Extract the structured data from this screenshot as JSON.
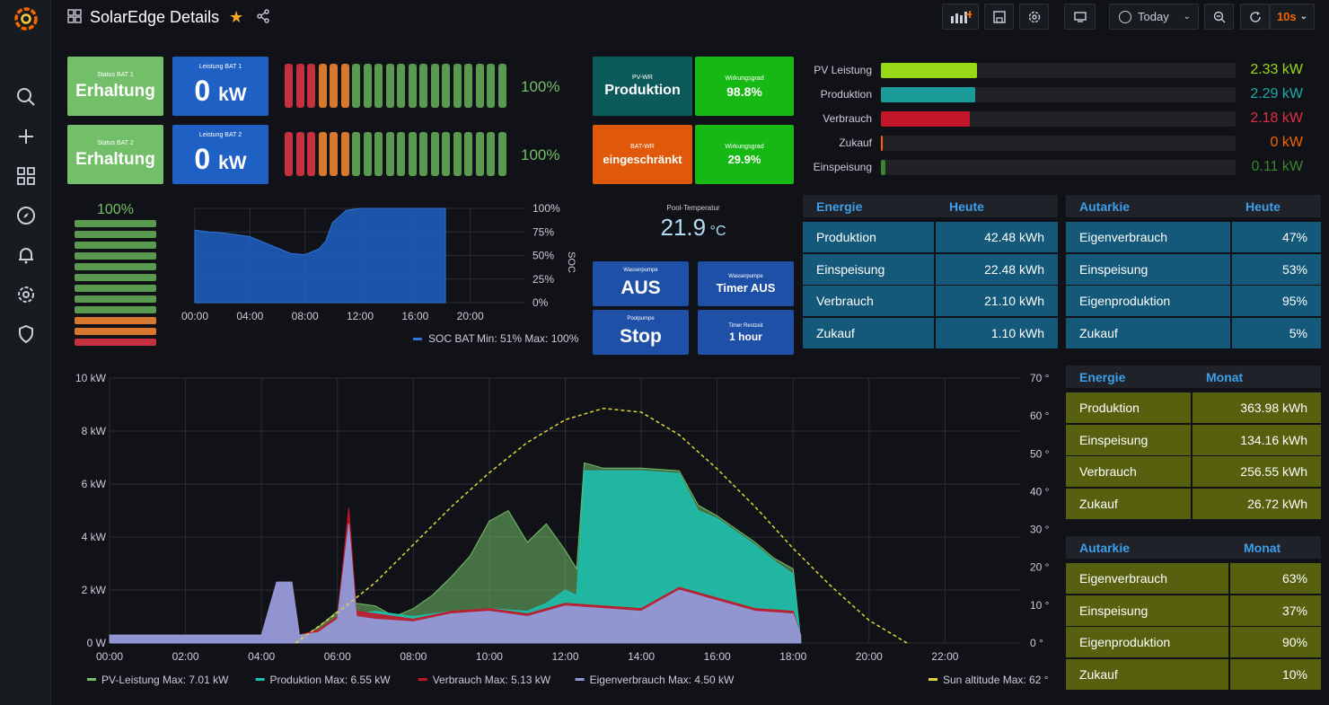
{
  "header": {
    "title": "SolarEdge Details",
    "time_range": "Today",
    "refresh": "10s"
  },
  "bat1": {
    "status_title": "Status BAT 1",
    "status": "Erhaltung",
    "power_title": "Leistung BAT 1",
    "power_value": "0",
    "power_unit": "kW",
    "soc": "100%"
  },
  "bat2": {
    "status_title": "Status BAT 2",
    "status": "Erhaltung",
    "power_title": "Leistung BAT 2",
    "power_value": "0",
    "power_unit": "kW",
    "soc": "100%"
  },
  "soc_level": "100%",
  "pvwr": {
    "title": "PV-WR",
    "status": "Produktion",
    "eff_title": "Wirkungsgrad",
    "eff": "98.8%"
  },
  "batwr": {
    "title": "BAT-WR",
    "status": "eingeschränkt",
    "eff_title": "Wirkungsgrad",
    "eff": "29.9%"
  },
  "pool": {
    "temp_title": "Pool-Temperatur",
    "temp": "21.9",
    "temp_unit": "°C"
  },
  "pumps": [
    {
      "title": "Wasserpumpe",
      "value": "AUS"
    },
    {
      "title": "Wasserpumpe",
      "value": "Timer AUS"
    },
    {
      "title": "Poolpumpe",
      "value": "Stop"
    },
    {
      "title": "Timer Restzeit",
      "value": "1 hour"
    }
  ],
  "bars": [
    {
      "label": "PV Leistung",
      "value": "2.33 kW",
      "fraction": 0.27,
      "color": "#96d916"
    },
    {
      "label": "Produktion",
      "value": "2.29 kW",
      "fraction": 0.265,
      "color": "#1b9a9a"
    },
    {
      "label": "Verbrauch",
      "value": "2.18 kW",
      "fraction": 0.25,
      "color": "#c4162a"
    },
    {
      "label": "Zukauf",
      "value": "0 kW",
      "fraction": 0.004,
      "color": "#fa6400"
    },
    {
      "label": "Einspeisung",
      "value": "0.11 kW",
      "fraction": 0.013,
      "color": "#37872d"
    }
  ],
  "soc_chart": {
    "type": "area",
    "x_ticks": [
      "00:00",
      "04:00",
      "08:00",
      "12:00",
      "16:00",
      "20:00"
    ],
    "y_ticks": [
      "100%",
      "75%",
      "50%",
      "25%",
      "0%"
    ],
    "ylabel": "SOC",
    "legend": "SOC BAT",
    "legend_stats": "Min: 51%  Max: 100%",
    "series": [
      {
        "name": "SOC BAT",
        "x": [
          0,
          1,
          2,
          3,
          4,
          5,
          6,
          7,
          8,
          9,
          9.5,
          10,
          11,
          12,
          13,
          14,
          15,
          16,
          17,
          18.2
        ],
        "values": [
          77,
          75,
          74,
          72,
          70,
          64,
          58,
          52,
          51,
          57,
          65,
          85,
          98,
          100,
          100,
          100,
          100,
          100,
          100,
          100
        ]
      }
    ]
  },
  "energie_heute": {
    "col1": "Energie",
    "col2": "Heute",
    "rows": [
      {
        "label": "Produktion",
        "value": "42.48 kWh"
      },
      {
        "label": "Einspeisung",
        "value": "22.48 kWh"
      },
      {
        "label": "Verbrauch",
        "value": "21.10 kWh"
      },
      {
        "label": "Zukauf",
        "value": "1.10 kWh"
      }
    ]
  },
  "autarkie_heute": {
    "col1": "Autarkie",
    "col2": "Heute",
    "rows": [
      {
        "label": "Eigenverbrauch",
        "value": "47%"
      },
      {
        "label": "Einspeisung",
        "value": "53%"
      },
      {
        "label": "Eigenproduktion",
        "value": "95%"
      },
      {
        "label": "Zukauf",
        "value": "5%"
      }
    ]
  },
  "energie_monat": {
    "col1": "Energie",
    "col2": "Monat",
    "rows": [
      {
        "label": "Produktion",
        "value": "363.98 kWh"
      },
      {
        "label": "Einspeisung",
        "value": "134.16 kWh"
      },
      {
        "label": "Verbrauch",
        "value": "256.55 kWh"
      },
      {
        "label": "Zukauf",
        "value": "26.72 kWh"
      }
    ]
  },
  "autarkie_monat": {
    "col1": "Autarkie",
    "col2": "Monat",
    "rows": [
      {
        "label": "Eigenverbrauch",
        "value": "63%"
      },
      {
        "label": "Einspeisung",
        "value": "37%"
      },
      {
        "label": "Eigenproduktion",
        "value": "90%"
      },
      {
        "label": "Zukauf",
        "value": "10%"
      }
    ]
  },
  "chart_data": {
    "type": "area",
    "x_ticks": [
      "00:00",
      "02:00",
      "04:00",
      "06:00",
      "08:00",
      "10:00",
      "12:00",
      "14:00",
      "16:00",
      "18:00",
      "20:00",
      "22:00"
    ],
    "y_ticks": [
      "10 kW",
      "8 kW",
      "6 kW",
      "4 kW",
      "2 kW",
      "0 W"
    ],
    "y2_ticks": [
      "70 °",
      "60 °",
      "50 °",
      "40 °",
      "30 °",
      "20 °",
      "10 °",
      "0 °"
    ],
    "ylim": [
      0,
      10
    ],
    "y2lim": [
      0,
      70
    ],
    "series": [
      {
        "name": "PV-Leistung",
        "legend": "PV-Leistung  Max: 7.01 kW",
        "color": "#73bf69",
        "x": [
          4.9,
          5.5,
          6,
          6.5,
          7,
          7.5,
          8,
          8.5,
          9,
          9.5,
          10,
          10.5,
          11,
          11.5,
          12,
          12.3,
          12.5,
          13,
          14,
          15,
          15.5,
          16,
          17,
          17.5,
          18,
          18.2
        ],
        "values": [
          0.1,
          0.6,
          1.2,
          1.5,
          1.4,
          1.0,
          1.3,
          1.8,
          2.5,
          3.3,
          4.6,
          5.0,
          3.8,
          4.5,
          3.5,
          2.8,
          6.8,
          6.6,
          6.6,
          6.5,
          5.2,
          4.8,
          3.8,
          3.2,
          2.8,
          0.1
        ]
      },
      {
        "name": "Produktion",
        "legend": "Produktion  Max: 6.55 kW",
        "color": "#1bc2b3",
        "x": [
          4.9,
          5.5,
          6,
          7,
          8,
          9,
          10,
          11,
          11.5,
          12,
          12.3,
          12.5,
          13,
          14,
          15,
          15.5,
          16,
          17,
          17.5,
          18,
          18.2
        ],
        "values": [
          0.1,
          0.5,
          1.0,
          1.2,
          1.0,
          1.2,
          1.3,
          1.2,
          1.5,
          2.0,
          1.8,
          6.5,
          6.5,
          6.5,
          6.4,
          5.0,
          4.7,
          3.7,
          3.1,
          2.6,
          0.1
        ]
      },
      {
        "name": "Verbrauch",
        "legend": "Verbrauch  Max: 5.13 kW",
        "color": "#c4162a",
        "x": [
          0,
          4,
          4.4,
          4.8,
          5,
          5.5,
          6,
          6.3,
          6.5,
          7,
          8,
          9,
          10,
          11,
          12,
          13,
          14,
          15,
          16,
          17,
          18,
          18.2
        ],
        "values": [
          0.3,
          0.3,
          2.3,
          2.3,
          0.3,
          0.5,
          1.0,
          5.1,
          1.2,
          1.1,
          0.9,
          1.2,
          1.3,
          1.1,
          1.5,
          1.4,
          1.3,
          2.1,
          1.7,
          1.3,
          1.2,
          0.3
        ]
      },
      {
        "name": "Eigenverbrauch",
        "legend": "Eigenverbrauch  Max: 4.50 kW",
        "color": "#8f9bd9",
        "x": [
          0,
          4,
          4.4,
          4.8,
          5,
          5.5,
          6,
          6.3,
          6.5,
          7,
          8,
          9,
          10,
          11,
          12,
          13,
          14,
          15,
          16,
          17,
          18,
          18.2
        ],
        "values": [
          0.3,
          0.3,
          2.3,
          2.3,
          0.3,
          0.4,
          0.9,
          4.5,
          1.0,
          0.9,
          0.8,
          1.1,
          1.2,
          1.0,
          1.4,
          1.3,
          1.2,
          2.0,
          1.6,
          1.2,
          1.1,
          0.3
        ]
      },
      {
        "name": "Sun altitude",
        "legend": "Sun altitude  Max: 62 °",
        "color": "#e0d53a",
        "axis": "right",
        "x": [
          4.9,
          6,
          7,
          8,
          9,
          10,
          11,
          12,
          13,
          14,
          15,
          16,
          17,
          18,
          19,
          20,
          21
        ],
        "values": [
          0,
          8,
          16,
          26,
          36,
          45,
          53,
          59,
          62,
          61,
          55,
          46,
          36,
          25,
          15,
          6,
          0
        ]
      }
    ]
  }
}
